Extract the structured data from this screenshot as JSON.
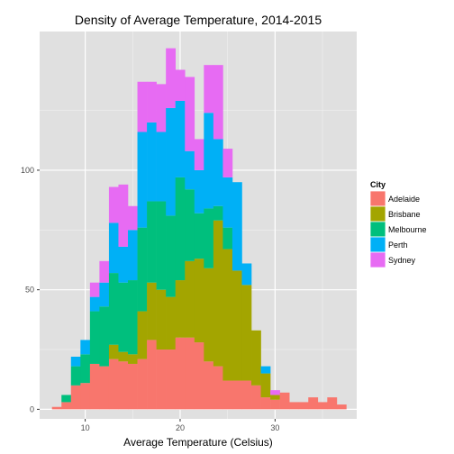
{
  "chart_data": {
    "type": "bar",
    "stacked": true,
    "title": "Density of Average Temperature, 2014-2015",
    "xlabel": "Average Temperature (Celsius)",
    "ylabel": "",
    "bin_width": 1,
    "xlim": [
      5.2,
      38.6
    ],
    "ylim": [
      -4,
      158
    ],
    "x_ticks": [
      10,
      20,
      30
    ],
    "y_ticks": [
      0,
      50,
      100
    ],
    "grid": true,
    "panel_background": "#e0e0e0",
    "legend": {
      "title": "City",
      "position": "right",
      "items": [
        {
          "label": "Adelaide",
          "color": "#f8766d"
        },
        {
          "label": "Brisbane",
          "color": "#a3a500"
        },
        {
          "label": "Melbourne",
          "color": "#00bf7d"
        },
        {
          "label": "Perth",
          "color": "#00b0f6"
        },
        {
          "label": "Sydney",
          "color": "#e76bf3"
        }
      ]
    },
    "x": [
      7,
      8,
      9,
      10,
      11,
      12,
      13,
      14,
      15,
      16,
      17,
      18,
      19,
      20,
      21,
      22,
      23,
      24,
      25,
      26,
      27,
      28,
      29,
      30,
      31,
      32,
      33,
      34,
      35,
      36,
      37
    ],
    "series": [
      {
        "name": "Adelaide",
        "color": "#f8766d",
        "values": [
          1,
          3,
          10,
          11,
          19,
          18,
          21,
          20,
          19,
          21,
          29,
          25,
          25,
          30,
          30,
          28,
          20,
          18,
          12,
          12,
          12,
          10,
          5,
          4,
          7,
          3,
          3,
          5,
          3,
          5,
          2
        ]
      },
      {
        "name": "Brisbane",
        "color": "#a3a500",
        "values": [
          0,
          0,
          0,
          0,
          0,
          0,
          6,
          4,
          4,
          20,
          24,
          25,
          22,
          24,
          32,
          35,
          39,
          61,
          55,
          46,
          40,
          23,
          10,
          2,
          0,
          0,
          0,
          0,
          0,
          0,
          0
        ]
      },
      {
        "name": "Melbourne",
        "color": "#00bf7d",
        "values": [
          0,
          3,
          8,
          12,
          22,
          25,
          30,
          29,
          31,
          35,
          34,
          37,
          34,
          43,
          30,
          19,
          25,
          6,
          9,
          0,
          0,
          0,
          0,
          0,
          0,
          0,
          0,
          0,
          0,
          0,
          0
        ]
      },
      {
        "name": "Perth",
        "color": "#00b0f6",
        "values": [
          0,
          0,
          4,
          6,
          6,
          10,
          21,
          15,
          21,
          40,
          33,
          29,
          45,
          32,
          16,
          18,
          40,
          28,
          21,
          37,
          9,
          0,
          3,
          0,
          0,
          0,
          0,
          0,
          0,
          0,
          0
        ]
      },
      {
        "name": "Sydney",
        "color": "#e76bf3",
        "values": [
          0,
          0,
          0,
          0,
          6,
          9,
          15,
          26,
          10,
          21,
          17,
          20,
          25,
          13,
          31,
          13,
          20,
          31,
          12,
          0,
          0,
          0,
          0,
          2,
          0,
          0,
          0,
          0,
          0,
          0,
          0
        ]
      }
    ]
  }
}
